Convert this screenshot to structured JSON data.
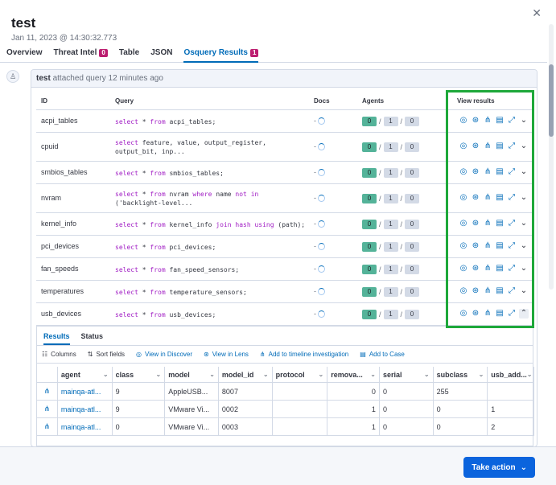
{
  "flyout": {
    "title": "test",
    "timestamp": "Jan 11, 2023 @ 14:30:32.773",
    "close_glyph": "✕"
  },
  "tabs": [
    {
      "label": "Overview"
    },
    {
      "label": "Threat Intel",
      "badge": "0"
    },
    {
      "label": "Table"
    },
    {
      "label": "JSON"
    },
    {
      "label": "Osquery Results",
      "badge": "1",
      "active": true
    }
  ],
  "comment": {
    "user": "test",
    "action": "attached query 12 minutes ago"
  },
  "query_table": {
    "headers": {
      "id": "ID",
      "query": "Query",
      "docs": "Docs",
      "agents": "Agents",
      "view_results": "View results"
    },
    "rows": [
      {
        "id": "acpi_tables",
        "query_lines": [
          "select * from acpi_tables;"
        ],
        "docs": "-",
        "agents": [
          "0",
          "1",
          "0"
        ]
      },
      {
        "id": "cpuid",
        "query_lines": [
          "select feature, value, output_register,",
          "output_bit, inp..."
        ],
        "docs": "-",
        "agents": [
          "0",
          "1",
          "0"
        ]
      },
      {
        "id": "smbios_tables",
        "query_lines": [
          "select * from smbios_tables;"
        ],
        "docs": "-",
        "agents": [
          "0",
          "1",
          "0"
        ]
      },
      {
        "id": "nvram",
        "query_lines": [
          "select * from nvram where name not in",
          "('backlight-level..."
        ],
        "docs": "-",
        "agents": [
          "0",
          "1",
          "0"
        ]
      },
      {
        "id": "kernel_info",
        "query_lines": [
          "select * from kernel_info join hash using (path);"
        ],
        "docs": "-",
        "agents": [
          "0",
          "1",
          "0"
        ]
      },
      {
        "id": "pci_devices",
        "query_lines": [
          "select * from pci_devices;"
        ],
        "docs": "-",
        "agents": [
          "0",
          "1",
          "0"
        ]
      },
      {
        "id": "fan_speeds",
        "query_lines": [
          "select * from fan_speed_sensors;"
        ],
        "docs": "-",
        "agents": [
          "0",
          "1",
          "0"
        ]
      },
      {
        "id": "temperatures",
        "query_lines": [
          "select * from temperature_sensors;"
        ],
        "docs": "-",
        "agents": [
          "0",
          "1",
          "0"
        ]
      },
      {
        "id": "usb_devices",
        "query_lines": [
          "select * from usb_devices;"
        ],
        "docs": "-",
        "agents": [
          "0",
          "1",
          "0"
        ],
        "expanded": true
      }
    ],
    "separator": "/"
  },
  "results_panel": {
    "tabs": [
      {
        "label": "Results",
        "active": true
      },
      {
        "label": "Status"
      }
    ],
    "toolbar": [
      {
        "label": "Columns",
        "icon": "columns-icon",
        "glyph": "☷"
      },
      {
        "label": "Sort fields",
        "icon": "sort-icon",
        "glyph": "⇅"
      },
      {
        "label": "View in Discover",
        "icon": "discover-icon",
        "glyph": "◎",
        "link": true
      },
      {
        "label": "View in Lens",
        "icon": "lens-icon",
        "glyph": "⊛",
        "link": true
      },
      {
        "label": "Add to timeline investigation",
        "icon": "timeline-icon",
        "glyph": "⋔",
        "link": true
      },
      {
        "label": "Add to Case",
        "icon": "case-icon",
        "glyph": "▤",
        "link": true
      }
    ],
    "columns": [
      "agent",
      "class",
      "model",
      "model_id",
      "protocol",
      "remova...",
      "serial",
      "subclass",
      "usb_add..."
    ],
    "rows": [
      [
        "mainqa-atl...",
        "9",
        "AppleUSB...",
        "8007",
        "",
        "0",
        "0",
        "255",
        ""
      ],
      [
        "mainqa-atl...",
        "9",
        "VMware Vi...",
        "0002",
        "",
        "1",
        "0",
        "0",
        "1"
      ],
      [
        "mainqa-atl...",
        "0",
        "VMware Vi...",
        "0003",
        "",
        "1",
        "0",
        "0",
        "2"
      ]
    ]
  },
  "footer": {
    "take_action_label": "Take action"
  }
}
